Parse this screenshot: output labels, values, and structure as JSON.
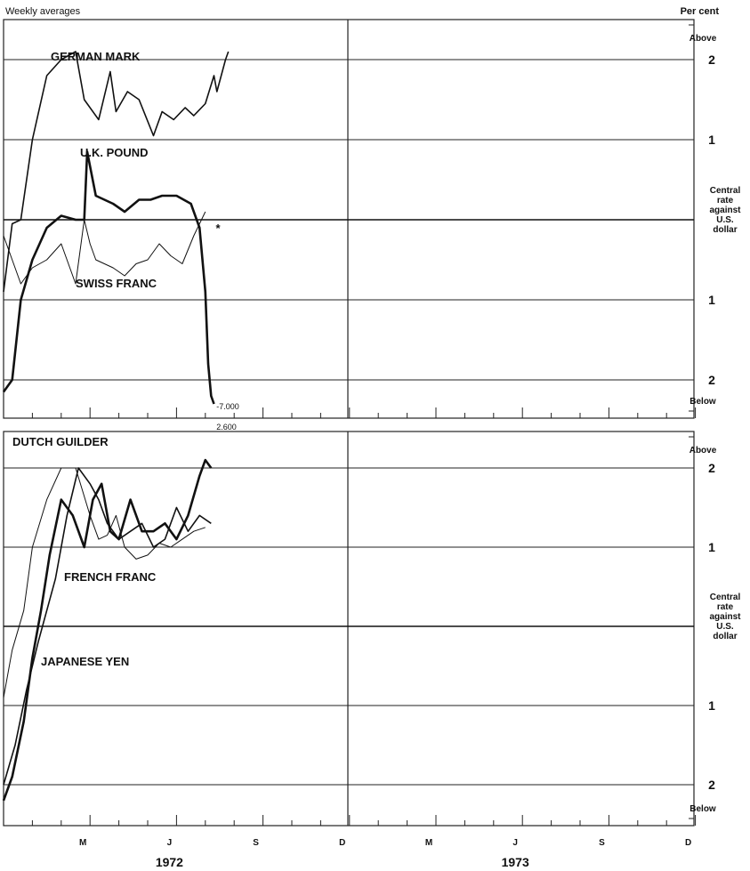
{
  "header": {
    "left_label": "Weekly averages",
    "right_label": "Per cent"
  },
  "chart_data": [
    {
      "type": "line",
      "panel": "top",
      "ylim": [
        -2.3,
        2.3
      ],
      "y_ticks": [
        {
          "value": 2,
          "label": "2"
        },
        {
          "value": 1,
          "label": "1"
        },
        {
          "value": -1,
          "label": "1"
        },
        {
          "value": -2,
          "label": "2"
        }
      ],
      "above_label": "Above",
      "below_label": "Below",
      "center_label": [
        "Central",
        "rate",
        "against",
        "U.S.",
        "dollar"
      ],
      "offscale_annotation": "-7.000",
      "marker": "*",
      "grid": true,
      "series": [
        {
          "name": "GERMAN MARK",
          "weight": "medium",
          "x": [
            0,
            0.3,
            0.6,
            1.0,
            1.5,
            2.0,
            2.5,
            2.8,
            3.3,
            3.7,
            3.9,
            4.3,
            4.7,
            5.2,
            5.5,
            5.9,
            6.3,
            6.6,
            7.0,
            7.3,
            7.4,
            7.7,
            7.8
          ],
          "values": [
            -0.9,
            -0.05,
            0,
            1.0,
            1.8,
            2.0,
            2.1,
            1.5,
            1.25,
            1.85,
            1.35,
            1.6,
            1.5,
            1.05,
            1.35,
            1.25,
            1.4,
            1.3,
            1.45,
            1.8,
            1.6,
            2.0,
            2.1
          ]
        },
        {
          "name": "U.K. POUND",
          "weight": "heavy",
          "x": [
            0,
            0.3,
            0.6,
            1.0,
            1.5,
            2.0,
            2.5,
            2.8,
            2.9,
            3.2,
            3.5,
            3.8,
            4.2,
            4.7,
            5.1,
            5.5,
            6.0,
            6.5,
            6.8,
            7.0,
            7.1,
            7.2,
            7.3
          ],
          "values": [
            -2.15,
            -2.0,
            -1.0,
            -0.5,
            -0.1,
            0.05,
            0,
            0.0,
            0.85,
            0.3,
            0.25,
            0.2,
            0.1,
            0.25,
            0.25,
            0.3,
            0.3,
            0.2,
            -0.1,
            -0.9,
            -1.8,
            -2.2,
            -2.3
          ]
        },
        {
          "name": "SWISS FRANC",
          "weight": "light",
          "x": [
            0,
            0.3,
            0.6,
            1.0,
            1.5,
            2.0,
            2.5,
            2.8,
            3.0,
            3.2,
            3.5,
            3.8,
            4.2,
            4.6,
            5.0,
            5.4,
            5.8,
            6.2,
            6.6,
            7.0
          ],
          "values": [
            -0.2,
            -0.5,
            -0.8,
            -0.6,
            -0.5,
            -0.3,
            -0.8,
            0.0,
            -0.3,
            -0.5,
            -0.55,
            -0.6,
            -0.7,
            -0.55,
            -0.5,
            -0.3,
            -0.45,
            -0.55,
            -0.2,
            0.1
          ]
        }
      ]
    },
    {
      "type": "line",
      "panel": "bottom",
      "ylim": [
        -2.3,
        2.3
      ],
      "y_ticks": [
        {
          "value": 2,
          "label": "2"
        },
        {
          "value": 1,
          "label": "1"
        },
        {
          "value": -1,
          "label": "1"
        },
        {
          "value": -2,
          "label": "2"
        }
      ],
      "above_label": "Above",
      "below_label": "Below",
      "center_label": [
        "Central",
        "rate",
        "against",
        "U.S.",
        "dollar"
      ],
      "offscale_annotation": "2.600",
      "grid": true,
      "x_ticks": [
        {
          "pos": 3,
          "label": "M"
        },
        {
          "pos": 6,
          "label": "J"
        },
        {
          "pos": 9,
          "label": "S"
        },
        {
          "pos": 12,
          "label": "D"
        },
        {
          "pos": 15,
          "label": "M"
        },
        {
          "pos": 18,
          "label": "J"
        },
        {
          "pos": 21,
          "label": "S"
        },
        {
          "pos": 24,
          "label": "D"
        }
      ],
      "years": [
        {
          "pos": 6,
          "label": "1972"
        },
        {
          "pos": 18,
          "label": "1973"
        }
      ],
      "series": [
        {
          "name": "DUTCH GUILDER",
          "weight": "medium",
          "x": [
            0,
            0.4,
            0.8,
            1.2,
            1.8,
            2.2,
            2.6,
            3.0,
            3.3,
            3.6,
            4.0,
            4.4,
            4.8,
            5.2,
            5.6,
            6.0,
            6.4,
            6.8,
            7.2
          ],
          "values": [
            -2.0,
            -1.5,
            -0.8,
            -0.2,
            0.6,
            1.4,
            2.0,
            1.8,
            1.6,
            1.3,
            1.1,
            1.2,
            1.3,
            1.0,
            1.1,
            1.5,
            1.2,
            1.4,
            1.3
          ]
        },
        {
          "name": "FRENCH FRANC",
          "weight": "light",
          "x": [
            0,
            0.3,
            0.7,
            1.0,
            1.5,
            2.0,
            2.5,
            3.0,
            3.3,
            3.6,
            3.9,
            4.2,
            4.6,
            5.0,
            5.4,
            5.8,
            6.2,
            6.6,
            7.0
          ],
          "values": [
            -0.9,
            -0.3,
            0.2,
            1.0,
            1.6,
            2.0,
            2.0,
            1.4,
            1.1,
            1.15,
            1.4,
            1.0,
            0.85,
            0.9,
            1.05,
            1.0,
            1.1,
            1.2,
            1.25
          ]
        },
        {
          "name": "JAPANESE YEN",
          "weight": "heavy",
          "x": [
            0,
            0.3,
            0.7,
            1.0,
            1.3,
            1.6,
            2.0,
            2.4,
            2.8,
            3.1,
            3.4,
            3.7,
            4.0,
            4.4,
            4.8,
            5.2,
            5.6,
            6.0,
            6.4,
            6.8,
            7.0,
            7.2
          ],
          "values": [
            -2.2,
            -1.9,
            -1.2,
            -0.4,
            0.2,
            0.9,
            1.6,
            1.4,
            1.0,
            1.6,
            1.8,
            1.2,
            1.1,
            1.6,
            1.2,
            1.2,
            1.3,
            1.1,
            1.4,
            1.9,
            2.1,
            2.0
          ]
        }
      ]
    }
  ]
}
